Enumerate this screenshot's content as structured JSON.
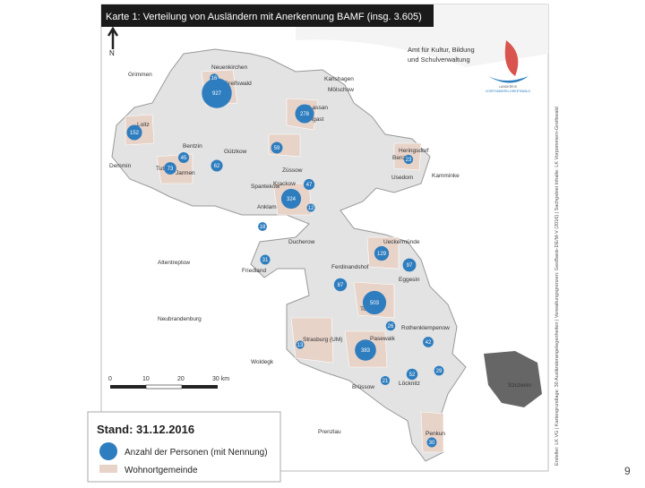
{
  "header": {
    "title": "Karte 1: Verteilung von Ausländern mit Anerkennung BAMF (insg. 3.605)"
  },
  "office": {
    "lines": [
      "Amt für Kultur, Bildung",
      "und Schulverwaltung"
    ]
  },
  "logo": {
    "lines": [
      "LANDKREIS",
      "VORPOMMERN-GREIFSWALD"
    ]
  },
  "north": "N",
  "source": "Ersteller: LK VG | Kartengrundlage: 30 Ausländerangelegenheiten | Verwaltungsgrenzen: GeoBasis-DE/M-V (2016) | Sachgebiet Inhalte: LK Vorpommern-Greifswald",
  "legend": {
    "date": "Stand: 31.12.2016",
    "bubble": "Anzahl der Personen (mit Nennung)",
    "area": "Wohnortgemeinde"
  },
  "scale": {
    "labels": [
      "0",
      "10",
      "20",
      "30 km"
    ]
  },
  "places": [
    "Neuenkirchen",
    "Greifswald",
    "Grimmen",
    "Karlshagen",
    "Mölschow",
    "Wolgast",
    "Loitz",
    "Lassan",
    "Benz",
    "Heringsdorf",
    "Usedom",
    "Kamminke",
    "Gützkow",
    "Bentzin",
    "Jarmen",
    "Tutow",
    "Demmin",
    "Züssow",
    "Anklam",
    "Spantekow",
    "Ducherow",
    "Friedland",
    "Altentreptow",
    "Neubrandenburg",
    "Ueckermünde",
    "Ferdinandshof",
    "Eggesin",
    "Torgelow",
    "Strasburg (UM)",
    "Pasewalk",
    "Rothenklempenow",
    "Woldegk",
    "Löcknitz",
    "Brüssow",
    "Szczecin",
    "Penkun",
    "Prenzlau",
    "Krackow"
  ],
  "bubbles": [
    927,
    16,
    278,
    152,
    59,
    45,
    73,
    62,
    47,
    324,
    12,
    18,
    23,
    129,
    31,
    87,
    97,
    503,
    26,
    13,
    383,
    42,
    29,
    52,
    21,
    30
  ],
  "page_number": "9"
}
